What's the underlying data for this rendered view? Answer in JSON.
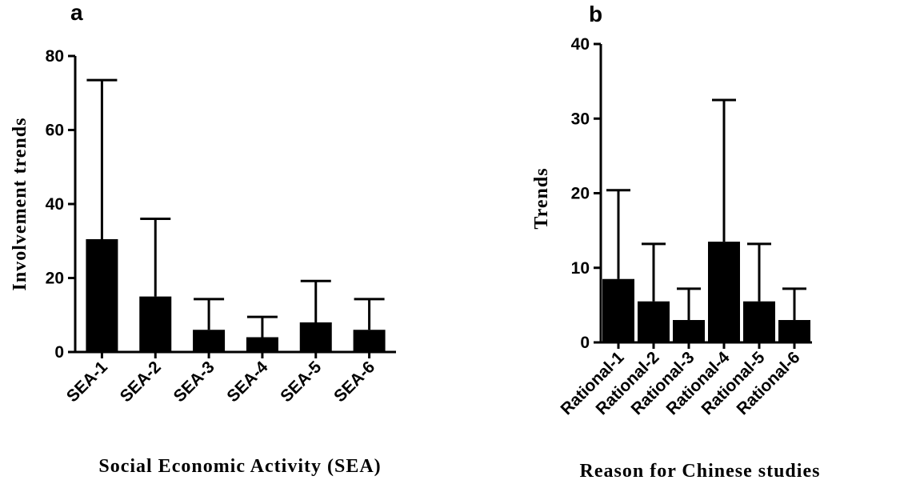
{
  "chart_data": [
    {
      "type": "bar",
      "panel_label": "a",
      "categories": [
        "SEA-1",
        "SEA-2",
        "SEA-3",
        "SEA-4",
        "SEA-5",
        "SEA-6"
      ],
      "values": [
        30.5,
        15,
        6,
        4,
        8,
        6
      ],
      "error_upper": [
        73.5,
        36,
        14.3,
        9.5,
        19.2,
        14.3
      ],
      "xlabel": "Social Economic Activity (SEA)",
      "ylabel": "Involvement trends",
      "ylim": [
        0,
        80
      ],
      "yticks": [
        0,
        20,
        40,
        60,
        80
      ],
      "grid": false,
      "bar_color": "#000000"
    },
    {
      "type": "bar",
      "panel_label": "b",
      "categories": [
        "Rational-1",
        "Rational-2",
        "Rational-3",
        "Rational-4",
        "Rational-5",
        "Rational-6"
      ],
      "values": [
        8.5,
        5.5,
        3,
        13.5,
        5.5,
        3
      ],
      "error_upper": [
        20.4,
        13.2,
        7.2,
        32.5,
        13.2,
        7.2
      ],
      "xlabel": "Reason for Chinese studies",
      "ylabel": "Trends",
      "ylim": [
        0,
        40
      ],
      "yticks": [
        0,
        10,
        20,
        30,
        40
      ],
      "grid": false,
      "bar_color": "#000000"
    }
  ]
}
